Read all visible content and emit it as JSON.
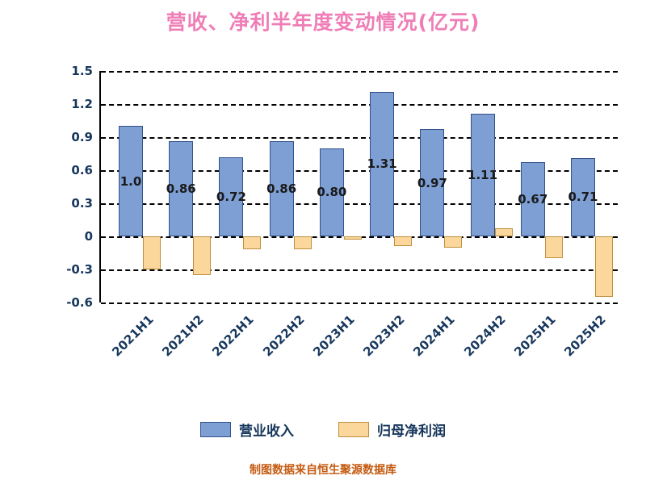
{
  "chart_data": {
    "type": "bar",
    "title": "营收、净利半年度变动情况(亿元)",
    "categories": [
      "2021H1",
      "2021H2",
      "2022H1",
      "2022H2",
      "2023H1",
      "2023H2",
      "2024H1",
      "2024H2",
      "2025H1",
      "2025H2"
    ],
    "series": [
      {
        "name": "营业收入",
        "color": "#7E9FD4",
        "border_color": "#33518A",
        "values": [
          1.0,
          0.86,
          0.72,
          0.86,
          0.8,
          1.31,
          0.97,
          1.11,
          0.67,
          0.71
        ],
        "labels": [
          "1.0",
          "0.86",
          "0.72",
          "0.86",
          "0.80",
          "1.31",
          "0.97",
          "1.11",
          "0.67",
          "0.71"
        ],
        "show_labels": true
      },
      {
        "name": "归母净利润",
        "color": "#FBD79B",
        "border_color": "#BF8F3F",
        "values": [
          -0.3,
          -0.35,
          -0.12,
          -0.12,
          -0.03,
          -0.09,
          -0.1,
          0.07,
          -0.2,
          -0.55
        ],
        "show_labels": false
      }
    ],
    "ylim": [
      -0.6,
      1.5
    ],
    "ytick_step": 0.3,
    "ytick_labels": [
      "1.5",
      "1.2",
      "0.9",
      "0.6",
      "0.3",
      "0",
      "-0.3",
      "-0.6"
    ],
    "grid": true,
    "legend_position": "bottom"
  },
  "footer": {
    "source": "制图数据来自恒生聚源数据库"
  },
  "colors": {
    "title": "#EF7EB7",
    "axis_text": "#16365C",
    "bar_label": "#1A1A1A",
    "footer": "#C55A11",
    "gridline": "#000000",
    "background": "#FFFFFF"
  }
}
